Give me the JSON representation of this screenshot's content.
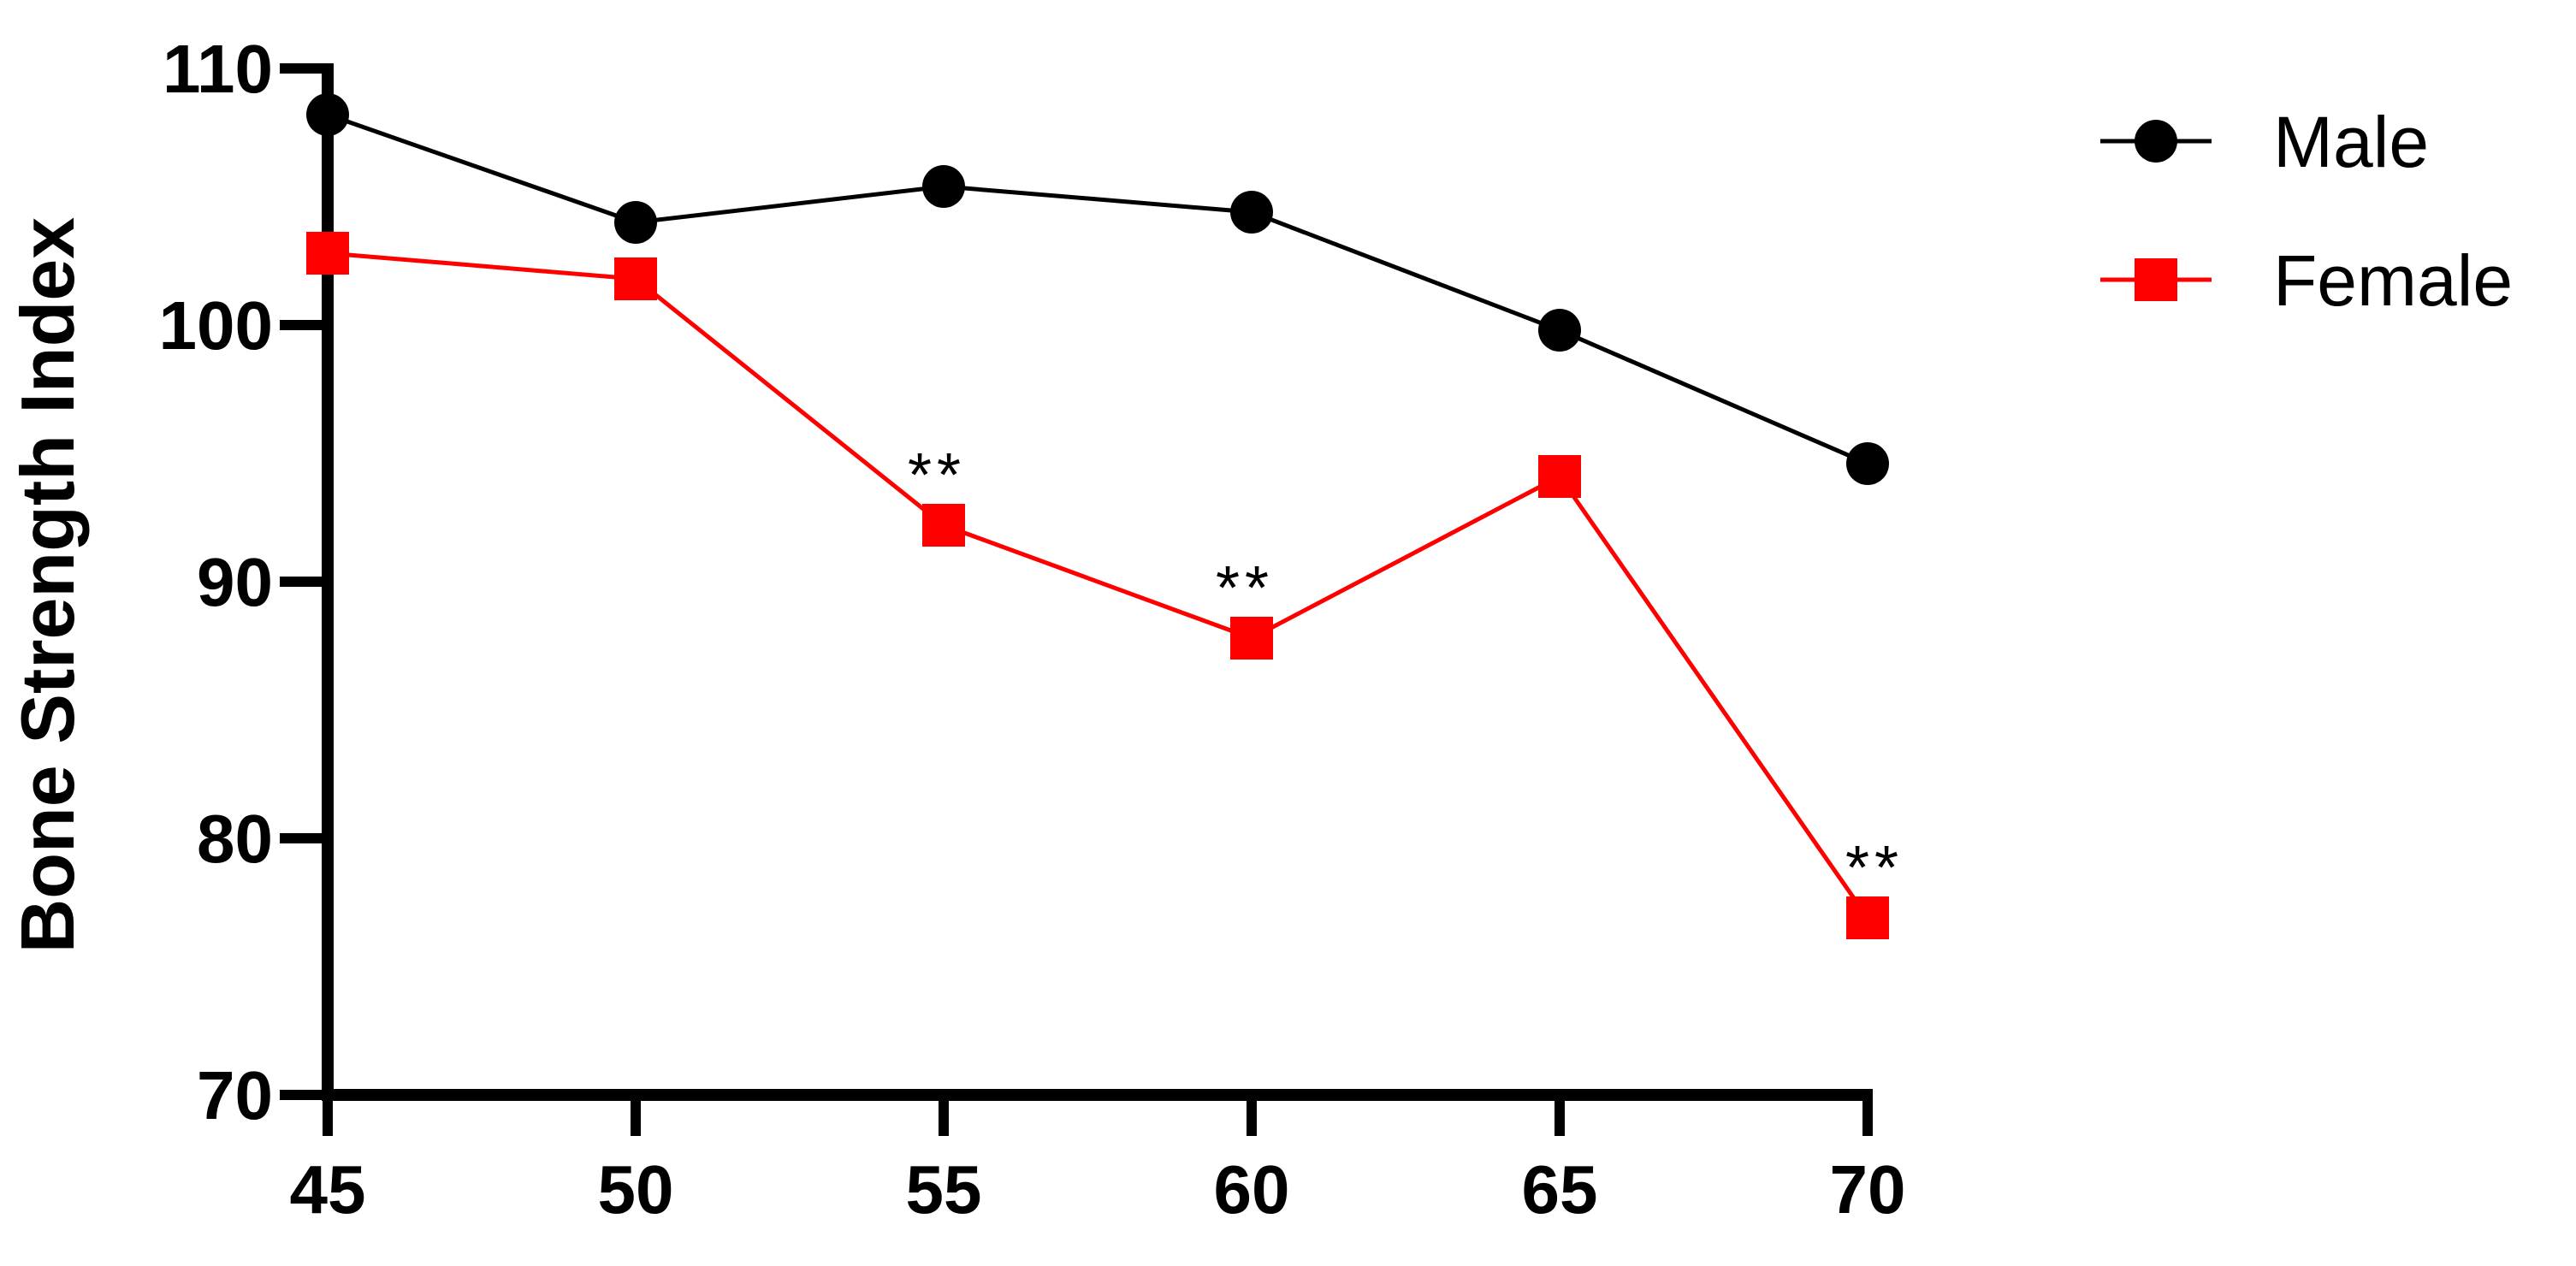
{
  "chart_data": {
    "type": "line",
    "x": [
      45,
      50,
      55,
      60,
      65,
      70
    ],
    "series": [
      {
        "name": "Male",
        "values": [
          108.2,
          104.0,
          105.4,
          104.4,
          99.8,
          94.6
        ],
        "color": "#000000",
        "marker": "circle"
      },
      {
        "name": "Female",
        "values": [
          102.8,
          101.8,
          92.2,
          87.8,
          94.1,
          76.9
        ],
        "color": "#ff0000",
        "marker": "square"
      }
    ],
    "title": "",
    "xlabel": "",
    "ylabel": "Bone Strength Index",
    "xlim": [
      45,
      70
    ],
    "ylim": [
      70,
      110
    ],
    "xticks": [
      "45",
      "50",
      "55",
      "60",
      "65",
      "70"
    ],
    "yticks": [
      "70",
      "80",
      "90",
      "100",
      "110"
    ],
    "grid": false,
    "legend": "top-right",
    "annotations": [
      {
        "x": 55,
        "y": 92.2,
        "text": "**"
      },
      {
        "x": 60,
        "y": 87.8,
        "text": "**"
      },
      {
        "x": 70,
        "y": 76.9,
        "text": "**"
      }
    ]
  }
}
